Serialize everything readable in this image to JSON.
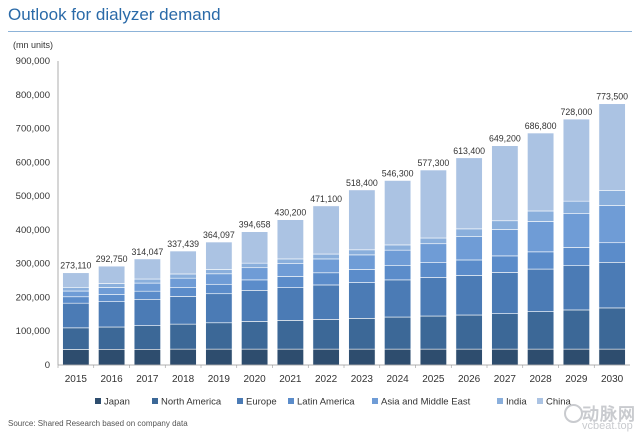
{
  "chart_data": {
    "type": "bar",
    "stacked": true,
    "title": "Outlook for dialyzer demand",
    "unit_label": "(mn units)",
    "ylim": [
      0,
      900000
    ],
    "yticks": [
      "0",
      "100,000",
      "200,000",
      "300,000",
      "400,000",
      "500,000",
      "600,000",
      "700,000",
      "800,000",
      "900,000"
    ],
    "ytick_values": [
      0,
      100000,
      200000,
      300000,
      400000,
      500000,
      600000,
      700000,
      800000,
      900000
    ],
    "categories": [
      "2015",
      "2016",
      "2017",
      "2018",
      "2019",
      "2020",
      "2021",
      "2022",
      "2023",
      "2024",
      "2025",
      "2026",
      "2027",
      "2028",
      "2029",
      "2030"
    ],
    "totals": [
      273110,
      292750,
      314047,
      337439,
      364097,
      394658,
      430200,
      471100,
      518400,
      546300,
      577300,
      613400,
      649200,
      686800,
      728000,
      773500
    ],
    "total_labels": [
      "273,110",
      "292,750",
      "314,047",
      "337,439",
      "364,097",
      "394,658",
      "430,200",
      "471,100",
      "518,400",
      "546,300",
      "577,300",
      "613,400",
      "649,200",
      "686,800",
      "728,000",
      "773,500"
    ],
    "series": [
      {
        "name": "Japan",
        "color": "#2e4d6e",
        "values": [
          46000,
          46500,
          46500,
          47000,
          47000,
          47000,
          47000,
          47000,
          47000,
          47000,
          47000,
          47000,
          47000,
          47000,
          47000,
          47000
        ]
      },
      {
        "name": "North America",
        "color": "#3c6897",
        "values": [
          64000,
          66000,
          70000,
          74000,
          78000,
          82000,
          85000,
          88000,
          91000,
          95000,
          98000,
          101000,
          105000,
          111000,
          116000,
          122000
        ]
      },
      {
        "name": "Europe",
        "color": "#4b7bb5",
        "values": [
          73000,
          75000,
          78000,
          82000,
          86000,
          92000,
          97000,
          102000,
          106000,
          110000,
          114000,
          117000,
          122000,
          126000,
          131000,
          135000
        ]
      },
      {
        "name": "Latin America",
        "color": "#5b8cca",
        "values": [
          19000,
          21000,
          24000,
          26000,
          28000,
          31000,
          33000,
          36000,
          39000,
          42000,
          44000,
          46000,
          49000,
          51000,
          54000,
          58000
        ]
      },
      {
        "name": "Asia and Middle East",
        "color": "#6f9cd6",
        "values": [
          17000,
          21000,
          24000,
          28000,
          31000,
          36000,
          38000,
          41000,
          43000,
          46000,
          56000,
          69000,
          78000,
          90000,
          100000,
          110000
        ]
      },
      {
        "name": "India",
        "color": "#8aafdc",
        "values": [
          11000,
          11500,
          12000,
          12500,
          13000,
          13500,
          14000,
          14500,
          15000,
          15500,
          17000,
          23000,
          26000,
          31000,
          37000,
          45000
        ]
      },
      {
        "name": "China",
        "color": "#abc3e3",
        "values": [
          43110,
          51750,
          59547,
          67939,
          81097,
          93158,
          116200,
          142600,
          177400,
          190800,
          201300,
          210400,
          222200,
          230800,
          243000,
          256500
        ]
      }
    ],
    "legend_position": "bottom",
    "grid": false
  },
  "source_text": "Source: Shared Research based on company data",
  "watermark": {
    "cn": "动脉网",
    "en": "vcbeat.top"
  }
}
